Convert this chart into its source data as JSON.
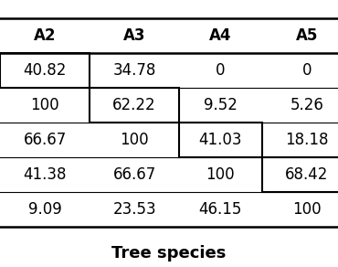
{
  "title": "Tree species",
  "columns": [
    "A2",
    "A3",
    "A4",
    "A5"
  ],
  "table_data": [
    [
      "40.82",
      "34.78",
      "0",
      "0"
    ],
    [
      "100",
      "62.22",
      "9.52",
      "5.26"
    ],
    [
      "66.67",
      "100",
      "41.03",
      "18.18"
    ],
    [
      "41.38",
      "66.67",
      "100",
      "68.42"
    ],
    [
      "9.09",
      "23.53",
      "46.15",
      "100"
    ]
  ],
  "background_color": "#ffffff",
  "font_size": 12,
  "title_font_size": 13,
  "fig_width": 3.7,
  "fig_height": 2.92,
  "dpi": 100
}
